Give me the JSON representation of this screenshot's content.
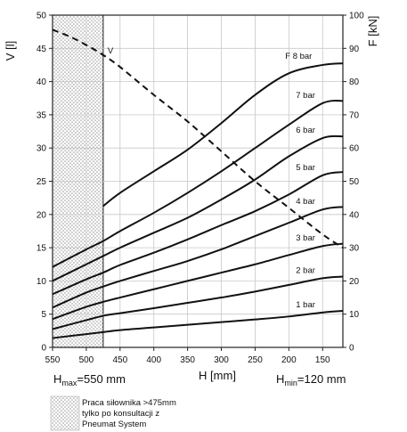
{
  "chart_data": {
    "type": "line",
    "title": "",
    "xlabel": "H [mm]",
    "ylabel_left": "V [l]",
    "ylabel_right": "F [kN]",
    "xlim": [
      550,
      120
    ],
    "ylim_left": [
      0,
      50
    ],
    "ylim_right": [
      0,
      100
    ],
    "x_ticks": [
      550,
      500,
      450,
      400,
      350,
      300,
      250,
      200,
      150
    ],
    "y_left_ticks": [
      0,
      5,
      10,
      15,
      20,
      25,
      30,
      35,
      40,
      45,
      50
    ],
    "y_right_ticks": [
      0,
      10,
      20,
      30,
      40,
      50,
      60,
      70,
      80,
      90,
      100
    ],
    "grid": true,
    "hatched_region": {
      "x_from": 550,
      "x_to": 475
    },
    "hmax_label": "H",
    "hmax_sub": "max",
    "hmax_rest": "=550 mm",
    "hmin_label": "H",
    "hmin_sub": "min",
    "hmin_rest": "=120 mm",
    "note_lines": [
      "Praca siłownika >475mm",
      "tylko po konsultacji z",
      "Pneumat System"
    ],
    "volume_series": {
      "name": "V",
      "axis": "left",
      "style": "dashed",
      "x": [
        550,
        525,
        500,
        475,
        450,
        400,
        350,
        300,
        250,
        200,
        150,
        120
      ],
      "y": [
        47.8,
        46.8,
        45.5,
        44.0,
        42.2,
        38.0,
        34.0,
        29.5,
        25.0,
        21.0,
        17.0,
        15.0
      ]
    },
    "series": [
      {
        "name": "1 bar",
        "axis": "right",
        "x": [
          550,
          500,
          475,
          450,
          400,
          350,
          300,
          250,
          200,
          150,
          120
        ],
        "y": [
          2.8,
          4.0,
          4.6,
          5.2,
          6.0,
          6.8,
          7.6,
          8.4,
          9.3,
          10.5,
          11.0
        ]
      },
      {
        "name": "2 bar",
        "axis": "right",
        "x": [
          550,
          500,
          475,
          450,
          400,
          350,
          300,
          250,
          200,
          150,
          120
        ],
        "y": [
          5.5,
          8.2,
          9.5,
          10.3,
          11.8,
          13.4,
          15.0,
          16.8,
          18.8,
          20.8,
          21.3
        ]
      },
      {
        "name": "3 bar",
        "axis": "right",
        "x": [
          550,
          500,
          475,
          450,
          400,
          350,
          300,
          250,
          200,
          150,
          120
        ],
        "y": [
          8.5,
          12.2,
          13.7,
          15.0,
          17.5,
          20.0,
          22.5,
          25.0,
          27.8,
          30.5,
          31.2
        ]
      },
      {
        "name": "4 bar",
        "axis": "right",
        "x": [
          550,
          500,
          475,
          450,
          400,
          350,
          300,
          250,
          200,
          150,
          120
        ],
        "y": [
          12.0,
          16.5,
          18.3,
          20.0,
          23.0,
          26.0,
          29.5,
          33.5,
          37.5,
          41.5,
          42.3
        ]
      },
      {
        "name": "5 bar",
        "axis": "right",
        "x": [
          550,
          500,
          475,
          450,
          400,
          350,
          300,
          250,
          200,
          150,
          120
        ],
        "y": [
          16.0,
          20.5,
          22.5,
          24.8,
          28.5,
          32.5,
          36.8,
          41.0,
          46.0,
          51.8,
          52.8
        ]
      },
      {
        "name": "6 bar",
        "axis": "right",
        "x": [
          550,
          500,
          475,
          450,
          400,
          350,
          300,
          250,
          200,
          150,
          120
        ],
        "y": [
          20.0,
          25.0,
          27.5,
          30.0,
          34.5,
          39.0,
          44.5,
          50.5,
          57.5,
          63.0,
          63.5
        ]
      },
      {
        "name": "7 bar",
        "axis": "right",
        "x": [
          550,
          500,
          475,
          450,
          400,
          350,
          300,
          250,
          200,
          150,
          120
        ],
        "y": [
          24.2,
          29.5,
          32.0,
          35.0,
          40.5,
          46.5,
          53.0,
          60.0,
          67.0,
          73.5,
          74.2
        ]
      },
      {
        "name": "F 8 bar",
        "axis": "right",
        "x": [
          475,
          450,
          400,
          350,
          300,
          250,
          200,
          150,
          120
        ],
        "y": [
          42.5,
          46.5,
          53.0,
          59.5,
          67.5,
          76.0,
          82.5,
          85.0,
          85.5
        ]
      }
    ],
    "v_label": "V"
  }
}
